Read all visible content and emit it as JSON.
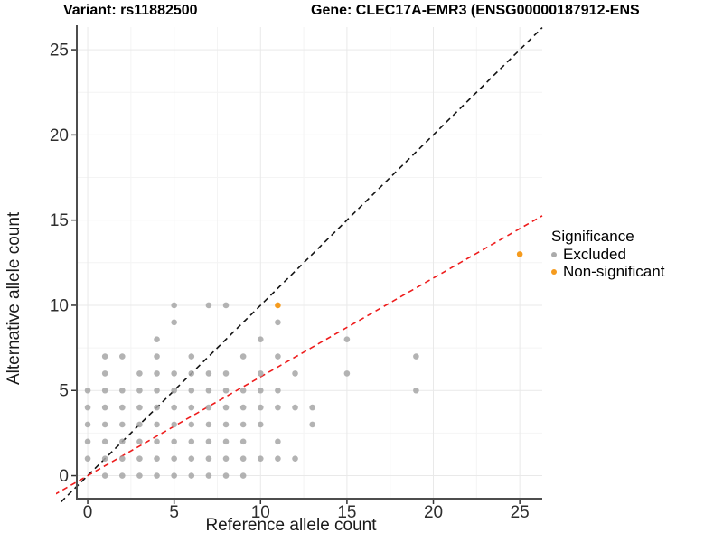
{
  "header": {
    "variant_title": "Variant: rs11882500",
    "gene_title": "Gene: CLEC17A-EMR3 (ENSG00000187912-ENS"
  },
  "chart_data": {
    "type": "scatter",
    "xlabel": "Reference allele count",
    "ylabel": "Alternative allele count",
    "xticks": [
      0,
      5,
      10,
      15,
      20,
      25
    ],
    "yticks": [
      0,
      5,
      10,
      15,
      20,
      25
    ],
    "xlim": [
      -0.63,
      26.3
    ],
    "ylim": [
      -1.35,
      26.33
    ],
    "grid": {
      "major_color": "#e9e9e9",
      "minor_color": "#f4f4f4",
      "minor": true
    },
    "axis_color": "#4d4d4d",
    "tick_color": "#333333",
    "tick_label_color": "#2e2e2e",
    "series": [
      {
        "name": "Excluded",
        "color": "#a6a6a6",
        "opacity": 0.85,
        "radius": 3.3,
        "points": [
          [
            1,
            0
          ],
          [
            2,
            0
          ],
          [
            3,
            0
          ],
          [
            4,
            0
          ],
          [
            5,
            0
          ],
          [
            6,
            0
          ],
          [
            7,
            0
          ],
          [
            8,
            0
          ],
          [
            9,
            0
          ],
          [
            0,
            1
          ],
          [
            1,
            1
          ],
          [
            2,
            1
          ],
          [
            3,
            1
          ],
          [
            4,
            1
          ],
          [
            5,
            1
          ],
          [
            6,
            1
          ],
          [
            7,
            1
          ],
          [
            8,
            1
          ],
          [
            9,
            1
          ],
          [
            10,
            1
          ],
          [
            11,
            1
          ],
          [
            12,
            1
          ],
          [
            0,
            2
          ],
          [
            1,
            2
          ],
          [
            2,
            2
          ],
          [
            3,
            2
          ],
          [
            4,
            2
          ],
          [
            5,
            2
          ],
          [
            6,
            2
          ],
          [
            7,
            2
          ],
          [
            8,
            2
          ],
          [
            9,
            2
          ],
          [
            11,
            2
          ],
          [
            0,
            3
          ],
          [
            1,
            3
          ],
          [
            2,
            3
          ],
          [
            3,
            3
          ],
          [
            4,
            3
          ],
          [
            5,
            3
          ],
          [
            6,
            3
          ],
          [
            7,
            3
          ],
          [
            8,
            3
          ],
          [
            9,
            3
          ],
          [
            10,
            3
          ],
          [
            13,
            3
          ],
          [
            0,
            4
          ],
          [
            1,
            4
          ],
          [
            2,
            4
          ],
          [
            3,
            4
          ],
          [
            4,
            4
          ],
          [
            5,
            4
          ],
          [
            6,
            4
          ],
          [
            7,
            4
          ],
          [
            8,
            4
          ],
          [
            9,
            4
          ],
          [
            10,
            4
          ],
          [
            11,
            4
          ],
          [
            12,
            4
          ],
          [
            13,
            4
          ],
          [
            0,
            5
          ],
          [
            1,
            5
          ],
          [
            2,
            5
          ],
          [
            3,
            5
          ],
          [
            4,
            5
          ],
          [
            5,
            5
          ],
          [
            6,
            5
          ],
          [
            7,
            5
          ],
          [
            8,
            5
          ],
          [
            9,
            5
          ],
          [
            10,
            5
          ],
          [
            11,
            5
          ],
          [
            19,
            5
          ],
          [
            1,
            6
          ],
          [
            3,
            6
          ],
          [
            4,
            6
          ],
          [
            5,
            6
          ],
          [
            6,
            6
          ],
          [
            7,
            6
          ],
          [
            8,
            6
          ],
          [
            10,
            6
          ],
          [
            12,
            6
          ],
          [
            15,
            6
          ],
          [
            1,
            7
          ],
          [
            2,
            7
          ],
          [
            4,
            7
          ],
          [
            6,
            7
          ],
          [
            9,
            7
          ],
          [
            11,
            7
          ],
          [
            19,
            7
          ],
          [
            4,
            8
          ],
          [
            10,
            8
          ],
          [
            15,
            8
          ],
          [
            5,
            9
          ],
          [
            11,
            9
          ],
          [
            5,
            10
          ],
          [
            7,
            10
          ],
          [
            8,
            10
          ]
        ]
      },
      {
        "name": "Non-significant",
        "color": "#f59b1e",
        "opacity": 1,
        "radius": 3.3,
        "points": [
          [
            11,
            10
          ],
          [
            25,
            13
          ]
        ]
      }
    ],
    "ablines": [
      {
        "name": "identity-line",
        "slope": 1,
        "intercept": 0,
        "color": "#141414",
        "dash": "6,4.5",
        "width": 1.6
      },
      {
        "name": "allelic-ratio-line",
        "slope": 0.58,
        "intercept": 0,
        "color": "#ee1c1c",
        "dash": "6,4.5",
        "width": 1.6
      }
    ],
    "legend": {
      "title": "Significance",
      "items": [
        {
          "label": "Excluded",
          "color": "#ababab"
        },
        {
          "label": "Non-significant",
          "color": "#f59b1e"
        }
      ]
    }
  }
}
